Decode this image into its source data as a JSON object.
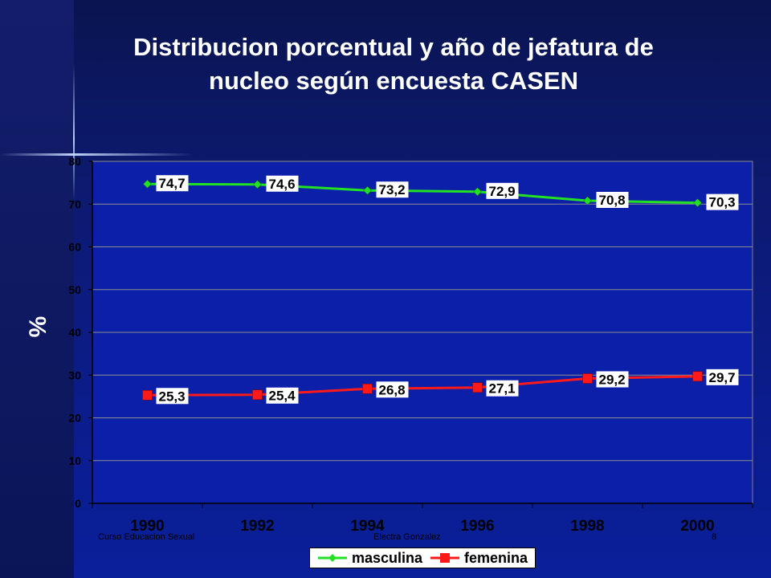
{
  "slide": {
    "title_line1": "Distribucion porcentual y año de jefatura de",
    "title_line2": "nucleo según encuesta CASEN",
    "footer_left": "Curso Educacion Sexual",
    "footer_center": "Electra Gonzalez",
    "page_number": "8"
  },
  "chart_data": {
    "type": "line",
    "title": "",
    "xlabel": "",
    "ylabel": "%",
    "categories": [
      "1990",
      "1992",
      "1994",
      "1996",
      "1998",
      "2000"
    ],
    "ylim": [
      0,
      80
    ],
    "yticks": [
      0,
      10,
      20,
      30,
      40,
      50,
      60,
      70,
      80
    ],
    "grid": true,
    "legend_position": "bottom",
    "series": [
      {
        "name": "masculina",
        "values": [
          74.7,
          74.6,
          73.2,
          72.9,
          70.8,
          70.3
        ],
        "labels": [
          "74,7",
          "74,6",
          "73,2",
          "72,9",
          "70,8",
          "70,3"
        ],
        "color": "#22e022",
        "marker": "diamond"
      },
      {
        "name": "femenina",
        "values": [
          25.3,
          25.4,
          26.8,
          27.1,
          29.2,
          29.7
        ],
        "labels": [
          "25,3",
          "25,4",
          "26,8",
          "27,1",
          "29,2",
          "29,7"
        ],
        "color": "#ff1a1a",
        "marker": "square"
      }
    ]
  }
}
